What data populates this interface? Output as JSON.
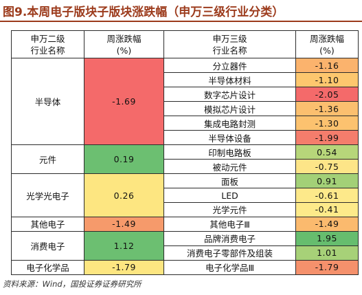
{
  "title": "图9.本周电子版块子版块涨跌幅（申万三级行业分类）",
  "headers": {
    "sw2_l1": "申万二级",
    "sw2_l2": "行业名称",
    "weekly_l1": "周涨跌幅",
    "weekly_l2": "(%)",
    "sw3_l1": "申万三级",
    "sw3_l2": "行业名称",
    "weekly3_l1": "周涨跌幅",
    "weekly3_l2": "(%)"
  },
  "groups": [
    {
      "name": "半导体",
      "change": "-1.69",
      "color": "#f46a6a",
      "subs": [
        {
          "name": "分立器件",
          "change": "-1.16",
          "color": "#fbb36d"
        },
        {
          "name": "半导体材料",
          "change": "-1.10",
          "color": "#fdc76e"
        },
        {
          "name": "数字芯片设计",
          "change": "-2.05",
          "color": "#f46a6a"
        },
        {
          "name": "模拟芯片设计",
          "change": "-1.36",
          "color": "#fbbf6f"
        },
        {
          "name": "集成电路封测",
          "change": "-1.30",
          "color": "#fcc26f"
        },
        {
          "name": "半导体设备",
          "change": "-1.99",
          "color": "#f47d6c"
        }
      ]
    },
    {
      "name": "元件",
      "change": "0.19",
      "color": "#6cbf71",
      "subs": [
        {
          "name": "印制电路板",
          "change": "0.54",
          "color": "#b7d67a"
        },
        {
          "name": "被动元件",
          "change": "-0.75",
          "color": "#fde588"
        }
      ]
    },
    {
      "name": "光学光电子",
      "change": "0.26",
      "color": "#fde681",
      "subs": [
        {
          "name": "面板",
          "change": "0.91",
          "color": "#a3d077"
        },
        {
          "name": "LED",
          "change": "-0.61",
          "color": "#fde98a"
        },
        {
          "name": "光学元件",
          "change": "-0.41",
          "color": "#fdea8a"
        }
      ]
    },
    {
      "name": "其他电子",
      "change": "-1.49",
      "color": "#f69a6b",
      "subs": [
        {
          "name": "其他电子Ⅲ",
          "change": "-1.49",
          "color": "#fbba6e"
        }
      ]
    },
    {
      "name": "消费电子",
      "change": "1.12",
      "color": "#6cbf71",
      "subs": [
        {
          "name": "品牌消费电子",
          "change": "1.95",
          "color": "#66bd6e"
        },
        {
          "name": "消费电子零部件及组装",
          "change": "1.01",
          "color": "#a7d178"
        }
      ]
    },
    {
      "name": "电子化学品",
      "change": "-1.79",
      "color": "#fde681",
      "subs": [
        {
          "name": "电子化学品Ⅲ",
          "change": "-1.79",
          "color": "#f5916c"
        }
      ]
    }
  ],
  "source": "资料来源：Wind，国投证券证券研究所"
}
